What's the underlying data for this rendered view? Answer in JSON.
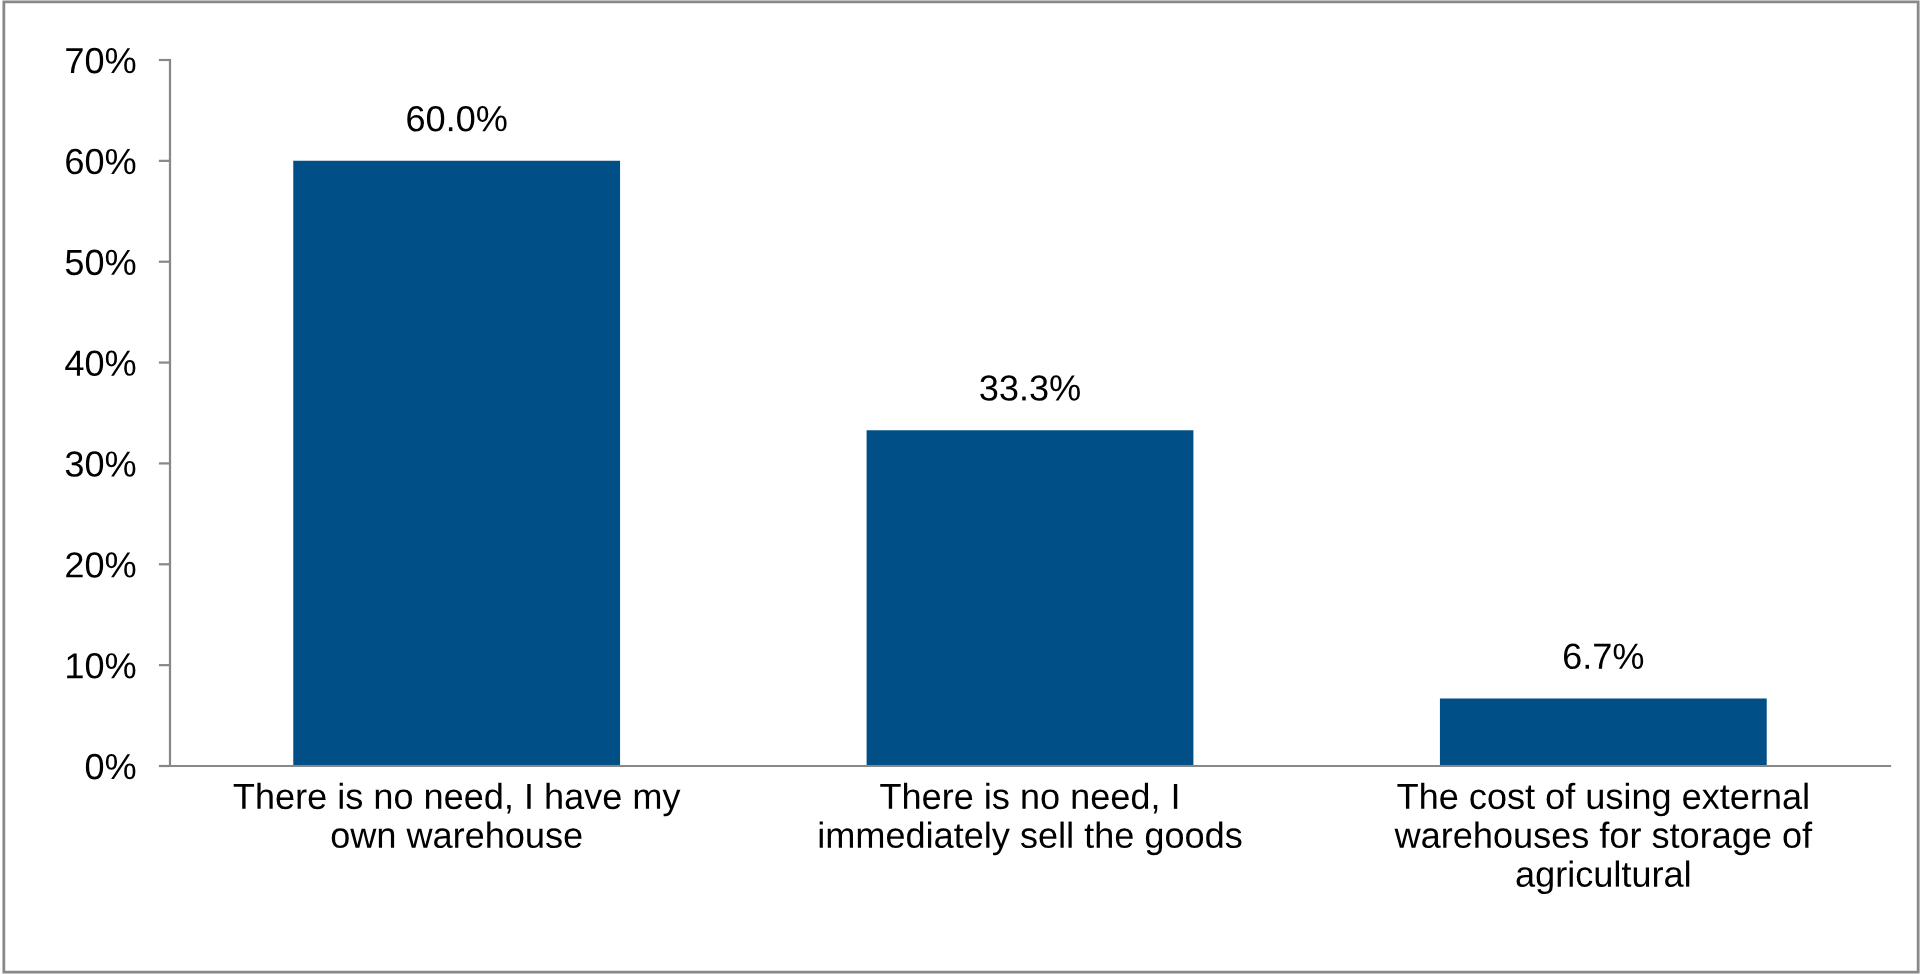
{
  "chart_data": {
    "type": "bar",
    "categories": [
      "There is no need, I have my\nown warehouse",
      "There is no need, I\nimmediately sell the goods",
      "The cost of using external\nwarehouses for storage of\nagricultural"
    ],
    "values": [
      60.0,
      33.3,
      6.7
    ],
    "value_labels": [
      "60.0%",
      "33.3%",
      "6.7%"
    ],
    "color": "#004f86",
    "ylim": [
      0,
      70
    ],
    "yticks": [
      {
        "value": 0,
        "label": "0%"
      },
      {
        "value": 10,
        "label": "10%"
      },
      {
        "value": 20,
        "label": "20%"
      },
      {
        "value": 30,
        "label": "30%"
      },
      {
        "value": 40,
        "label": "40%"
      },
      {
        "value": 50,
        "label": "50%"
      },
      {
        "value": 60,
        "label": "60%"
      },
      {
        "value": 70,
        "label": "70%"
      }
    ],
    "grid": false
  }
}
